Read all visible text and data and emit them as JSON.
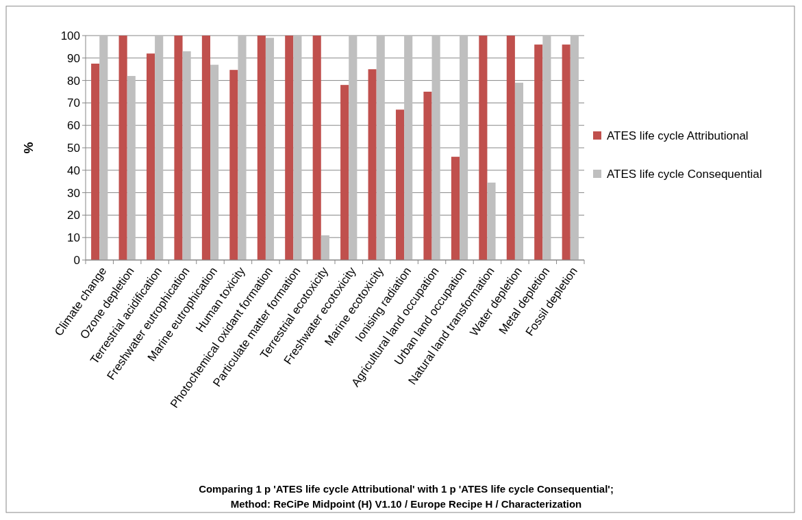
{
  "chart_data": {
    "type": "bar",
    "title": "Comparing 1 p 'ATES life cycle Attributional' with 1 p 'ATES life cycle Consequential';",
    "subtitle": "Method: ReCiPe Midpoint (H) V1.10 / Europe Recipe H / Characterization",
    "ylabel": "%",
    "categories": [
      "Climate change",
      "Ozone depletion",
      "Terrestrial acidification",
      "Freshwater eutrophication",
      "Marine eutrophication",
      "Human toxicity",
      "Photochemical oxidant formation",
      "Particulate matter formation",
      "Terrestrial ecotoxicity",
      "Freshwater ecotoxicity",
      "Marine ecotoxicity",
      "Ionising radiation",
      "Agricultural land occupation",
      "Urban land occupation",
      "Natural land transformation",
      "Water depletion",
      "Metal depletion",
      "Fossil depletion"
    ],
    "series": [
      {
        "name": "ATES life cycle Attributional",
        "color": "#c0504d",
        "values": [
          87.5,
          100,
          92,
          100,
          100,
          84.7,
          100,
          100,
          100,
          78,
          85,
          67,
          75,
          46,
          100,
          100,
          96,
          96
        ]
      },
      {
        "name": "ATES life cycle Consequential",
        "color": "#bfbfbf",
        "values": [
          100,
          82,
          100,
          93,
          87,
          100,
          99,
          100,
          11,
          100,
          100,
          100,
          100,
          100,
          34.5,
          79,
          100,
          100
        ]
      }
    ],
    "ylim": [
      0,
      100
    ],
    "yticks": [
      0,
      10,
      20,
      30,
      40,
      50,
      60,
      70,
      80,
      90,
      100
    ],
    "grid": "y",
    "legend": "right"
  }
}
